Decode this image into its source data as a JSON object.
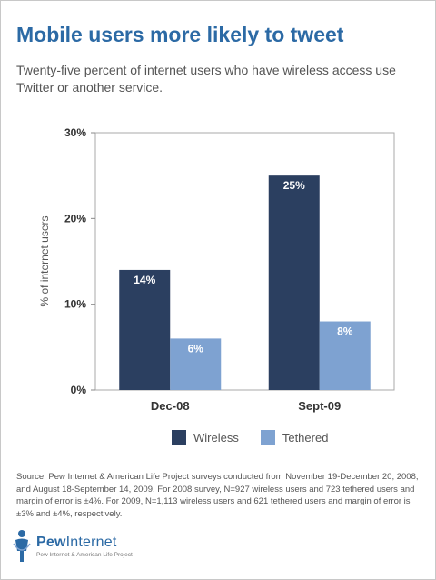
{
  "title": "Mobile users more likely to tweet",
  "subtitle": "Twenty-five percent of internet users who have wireless access use Twitter or another service.",
  "colors": {
    "wireless": "#2b3f60",
    "tethered": "#7ea2d1",
    "title": "#2c6aa5"
  },
  "chart_data": {
    "type": "bar",
    "categories": [
      "Dec-08",
      "Sept-09"
    ],
    "series": [
      {
        "name": "Wireless",
        "values": [
          14,
          25
        ],
        "labels": [
          "14%",
          "25%"
        ]
      },
      {
        "name": "Tethered",
        "values": [
          6,
          8
        ],
        "labels": [
          "6%",
          "8%"
        ]
      }
    ],
    "ylabel": "% of internet users",
    "ylim": [
      0,
      30
    ],
    "yticks": [
      0,
      10,
      20,
      30
    ],
    "ytick_labels": [
      "0%",
      "10%",
      "20%",
      "30%"
    ],
    "legend_placement": "bottom",
    "grid": false
  },
  "source": "Source: Pew Internet & American Life Project surveys conducted from November 19-December 20, 2008, and August 18-September 14, 2009. For 2008 survey, N=927 wireless users and 723 tethered users and margin of error is ±4%. For 2009, N=1,113 wireless users and 621 tethered users and margin of error is ±3% and ±4%, respectively.",
  "logo": {
    "name_bold": "Pew",
    "name_thin": "Internet",
    "tagline": "Pew Internet & American Life Project"
  }
}
